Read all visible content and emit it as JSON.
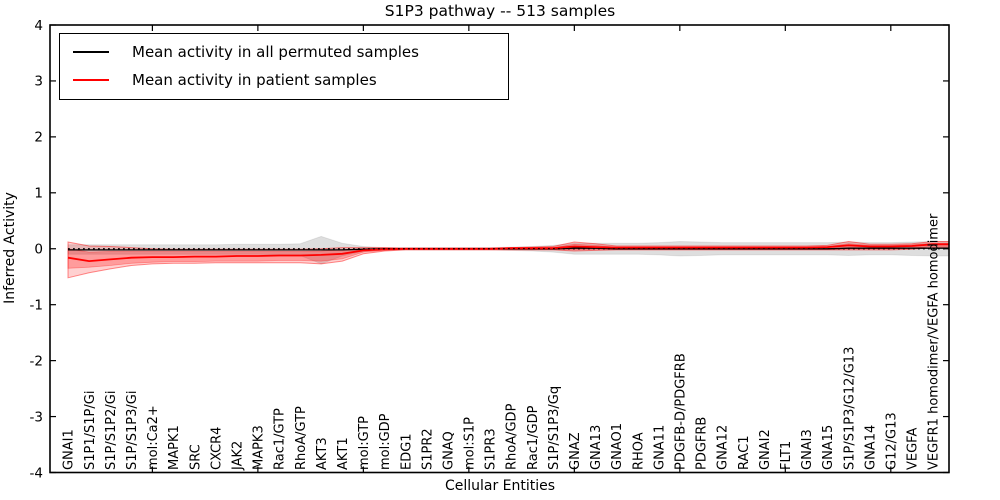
{
  "chart_data": {
    "type": "line",
    "title": "S1P3 pathway -- 513 samples",
    "xlabel": "Cellular Entities",
    "ylabel": "Inferred Activity",
    "ylim": [
      -4,
      4
    ],
    "yticks": [
      -4,
      -3,
      -2,
      -1,
      0,
      1,
      2,
      3,
      4
    ],
    "xtick_every": 5,
    "grid": false,
    "legend_position": "upper left",
    "categories": [
      "GNAI1",
      "S1P1/S1P/Gi",
      "S1P/S1P2/Gi",
      "S1P/S1P3/Gi",
      "mol:Ca2+",
      "MAPK1",
      "SRC",
      "CXCR4",
      "JAK2",
      "MAPK3",
      "Rac1/GTP",
      "RhoA/GTP",
      "AKT3",
      "AKT1",
      "mol:GTP",
      "mol:GDP",
      "EDG1",
      "S1PR2",
      "GNAQ",
      "mol:S1P",
      "S1PR3",
      "RhoA/GDP",
      "Rac1/GDP",
      "S1P/S1P3/Gq",
      "GNAZ",
      "GNA13",
      "GNAO1",
      "RHOA",
      "GNA11",
      "PDGFB-D/PDGFRB",
      "PDGFRB",
      "GNA12",
      "RAC1",
      "GNAI2",
      "FLT1",
      "GNAI3",
      "GNA15",
      "S1P/S1P3/G12/G13",
      "GNA14",
      "G12/G13",
      "VEGFA",
      "VEGFR1 homodimer/VEGFA homodimer"
    ],
    "series": [
      {
        "name": "Mean activity in all permuted samples",
        "color": "#000000",
        "style": "solid",
        "values": [
          -0.02,
          -0.02,
          -0.02,
          -0.02,
          -0.02,
          -0.02,
          -0.02,
          -0.02,
          -0.02,
          -0.02,
          -0.02,
          -0.02,
          -0.02,
          -0.02,
          -0.01,
          0,
          0,
          0,
          0,
          0,
          0,
          0,
          0,
          0,
          0.01,
          0.01,
          0,
          0,
          0,
          0,
          0,
          0,
          0,
          0,
          0,
          0,
          0,
          0.01,
          0.01,
          0.01,
          0.01,
          0.01
        ],
        "band_upper": [
          0.07,
          0.07,
          0.07,
          0.07,
          0.07,
          0.07,
          0.07,
          0.07,
          0.08,
          0.08,
          0.08,
          0.09,
          0.22,
          0.1,
          0.04,
          0.02,
          0.02,
          0.02,
          0.02,
          0.02,
          0.02,
          0.03,
          0.04,
          0.06,
          0.1,
          0.1,
          0.1,
          0.1,
          0.11,
          0.13,
          0.12,
          0.11,
          0.11,
          0.11,
          0.11,
          0.11,
          0.11,
          0.12,
          0.11,
          0.11,
          0.12,
          0.13
        ],
        "band_lower": [
          -0.1,
          -0.1,
          -0.1,
          -0.1,
          -0.1,
          -0.1,
          -0.1,
          -0.1,
          -0.1,
          -0.1,
          -0.11,
          -0.12,
          -0.27,
          -0.13,
          -0.05,
          -0.02,
          -0.02,
          -0.02,
          -0.02,
          -0.02,
          -0.02,
          -0.03,
          -0.04,
          -0.06,
          -0.1,
          -0.1,
          -0.1,
          -0.1,
          -0.11,
          -0.13,
          -0.12,
          -0.11,
          -0.11,
          -0.11,
          -0.11,
          -0.11,
          -0.11,
          -0.12,
          -0.11,
          -0.11,
          -0.12,
          -0.13
        ],
        "band_color": "rgba(0,0,0,0.13)"
      },
      {
        "name": "Mean activity in patient samples",
        "color": "#ff0000",
        "style": "solid",
        "values": [
          -0.16,
          -0.22,
          -0.19,
          -0.16,
          -0.15,
          -0.15,
          -0.14,
          -0.14,
          -0.13,
          -0.13,
          -0.12,
          -0.12,
          -0.11,
          -0.09,
          -0.03,
          -0.01,
          0,
          0,
          0,
          0,
          0,
          0.01,
          0.01,
          0.01,
          0.04,
          0.03,
          0.02,
          0.02,
          0.02,
          0.02,
          0.02,
          0.02,
          0.02,
          0.02,
          0.02,
          0.02,
          0.03,
          0.06,
          0.04,
          0.04,
          0.05,
          0.08
        ],
        "band_outer_upper": [
          0.12,
          0.05,
          0.04,
          0.02,
          0.0,
          -0.01,
          -0.01,
          -0.01,
          -0.01,
          -0.01,
          -0.01,
          -0.01,
          0.0,
          0.02,
          0.02,
          0.02,
          0.01,
          0.01,
          0.01,
          0.01,
          0.01,
          0.02,
          0.03,
          0.04,
          0.12,
          0.09,
          0.05,
          0.05,
          0.05,
          0.05,
          0.05,
          0.05,
          0.05,
          0.05,
          0.05,
          0.05,
          0.06,
          0.13,
          0.08,
          0.08,
          0.09,
          0.13
        ],
        "band_outer_lower": [
          -0.52,
          -0.43,
          -0.36,
          -0.3,
          -0.27,
          -0.26,
          -0.26,
          -0.25,
          -0.25,
          -0.25,
          -0.25,
          -0.25,
          -0.27,
          -0.22,
          -0.09,
          -0.04,
          -0.02,
          -0.02,
          -0.02,
          -0.02,
          -0.02,
          -0.02,
          -0.02,
          -0.02,
          -0.04,
          -0.03,
          -0.02,
          -0.02,
          -0.02,
          -0.02,
          -0.02,
          -0.02,
          -0.02,
          -0.02,
          -0.02,
          -0.02,
          -0.02,
          -0.02,
          -0.02,
          -0.02,
          -0.01,
          0.02
        ],
        "band_inner_upper": [
          0.0,
          -0.06,
          -0.05,
          -0.05,
          -0.05,
          -0.05,
          -0.05,
          -0.05,
          -0.05,
          -0.05,
          -0.05,
          -0.05,
          -0.04,
          -0.02,
          0.0,
          0.01,
          0.01,
          0.01,
          0.01,
          0.01,
          0.01,
          0.01,
          0.02,
          0.02,
          0.08,
          0.06,
          0.03,
          0.03,
          0.03,
          0.03,
          0.03,
          0.03,
          0.03,
          0.03,
          0.03,
          0.03,
          0.04,
          0.09,
          0.06,
          0.06,
          0.07,
          0.1
        ],
        "band_inner_lower": [
          -0.35,
          -0.33,
          -0.3,
          -0.26,
          -0.24,
          -0.23,
          -0.23,
          -0.22,
          -0.22,
          -0.22,
          -0.21,
          -0.21,
          -0.22,
          -0.18,
          -0.06,
          -0.03,
          -0.01,
          -0.01,
          -0.01,
          -0.01,
          -0.01,
          -0.01,
          -0.01,
          -0.01,
          -0.02,
          -0.01,
          -0.01,
          -0.01,
          -0.01,
          -0.01,
          -0.01,
          -0.01,
          -0.01,
          -0.01,
          -0.01,
          -0.01,
          -0.01,
          0.0,
          0.0,
          0.0,
          0.01,
          0.04
        ],
        "band_color": "rgba(255,0,0,0.18)",
        "band_inner_color": "rgba(255,0,0,0.25)"
      }
    ],
    "zero_line": {
      "y": 0,
      "style": "dotted",
      "color": "#000000"
    },
    "frame_color": "#000000"
  }
}
